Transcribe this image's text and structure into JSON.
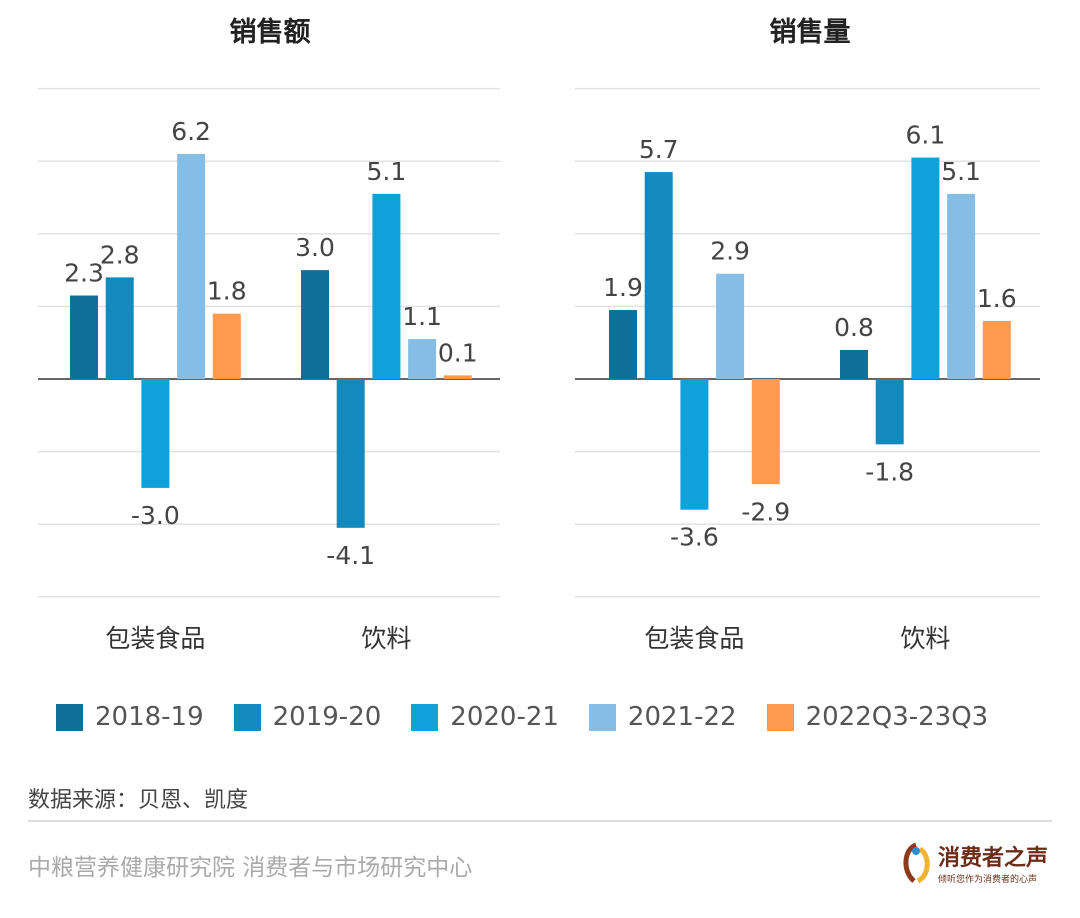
{
  "chart_data": [
    {
      "type": "bar",
      "title": "销售额",
      "categories": [
        "包装食品",
        "饮料"
      ],
      "ylim": [
        -6,
        8
      ],
      "grid": true,
      "series": [
        {
          "name": "2018-19",
          "values": [
            2.3,
            3.0
          ]
        },
        {
          "name": "2019-20",
          "values": [
            2.8,
            -4.1
          ]
        },
        {
          "name": "2020-21",
          "values": [
            -3.0,
            5.1
          ]
        },
        {
          "name": "2021-22",
          "values": [
            6.2,
            1.1
          ]
        },
        {
          "name": "2022Q3-23Q3",
          "values": [
            1.8,
            0.1
          ]
        }
      ]
    },
    {
      "type": "bar",
      "title": "销售量",
      "categories": [
        "包装食品",
        "饮料"
      ],
      "ylim": [
        -6,
        8
      ],
      "grid": true,
      "series": [
        {
          "name": "2018-19",
          "values": [
            1.9,
            0.8
          ]
        },
        {
          "name": "2019-20",
          "values": [
            5.7,
            -1.8
          ]
        },
        {
          "name": "2020-21",
          "values": [
            -3.6,
            6.1
          ]
        },
        {
          "name": "2021-22",
          "values": [
            2.9,
            5.1
          ]
        },
        {
          "name": "2022Q3-23Q3",
          "values": [
            -2.9,
            1.6
          ]
        }
      ]
    }
  ],
  "colors": [
    "#11709a",
    "#1389be",
    "#10a0db",
    "#86bde4",
    "#ff9a4f"
  ],
  "legend": [
    "2018-19",
    "2019-20",
    "2020-21",
    "2021-22",
    "2022Q3-23Q3"
  ],
  "source": "数据来源：贝恩、凯度",
  "footer": "中粮营养健康研究院 消费者与市场研究中心",
  "logo": {
    "name": "消费者之声",
    "tagline": "倾听您作为消费者的心声"
  }
}
